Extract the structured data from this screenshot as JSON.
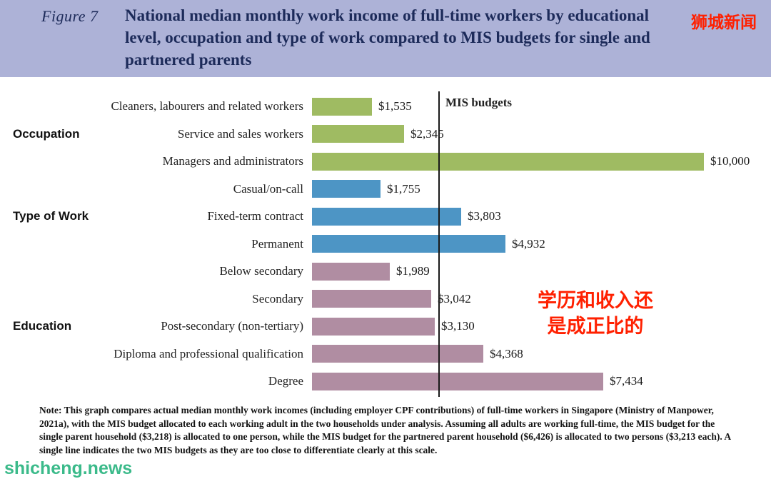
{
  "header": {
    "figure_label": "Figure 7",
    "title": "National median monthly work income of full-time workers by educational level, occupation and type of work compared to MIS budgets for single and partnered parents",
    "brand": "狮城新闻"
  },
  "chart_data": {
    "type": "bar",
    "orientation": "horizontal",
    "xlim": [
      0,
      10600
    ],
    "reference_line": {
      "label": "MIS budgets",
      "value": 3218
    },
    "groups": [
      {
        "name": "Occupation",
        "color": "#9fbb62",
        "items": [
          {
            "label": "Cleaners, labourers and related workers",
            "value": 1535,
            "value_label": "$1,535"
          },
          {
            "label": "Service and sales workers",
            "value": 2345,
            "value_label": "$2,345"
          },
          {
            "label": "Managers and administrators",
            "value": 10000,
            "value_label": "$10,000"
          }
        ]
      },
      {
        "name": "Type of Work",
        "color": "#4d95c5",
        "items": [
          {
            "label": "Casual/on-call",
            "value": 1755,
            "value_label": "$1,755"
          },
          {
            "label": "Fixed-term contract",
            "value": 3803,
            "value_label": "$3,803"
          },
          {
            "label": "Permanent",
            "value": 4932,
            "value_label": "$4,932"
          }
        ]
      },
      {
        "name": "Education",
        "color": "#b08da2",
        "items": [
          {
            "label": "Below secondary",
            "value": 1989,
            "value_label": "$1,989"
          },
          {
            "label": "Secondary",
            "value": 3042,
            "value_label": "$3,042"
          },
          {
            "label": "Post-secondary (non-tertiary)",
            "value": 3130,
            "value_label": "$3,130"
          },
          {
            "label": "Diploma and professional qualification",
            "value": 4368,
            "value_label": "$4,368"
          },
          {
            "label": "Degree",
            "value": 7434,
            "value_label": "$7,434"
          }
        ]
      }
    ]
  },
  "annotation": {
    "line1": "学历和收入还",
    "line2": "是成正比的",
    "color": "#ff2000"
  },
  "note": "Note: This graph compares actual median monthly work incomes (including employer CPF contributions) of full-time workers in Singapore (Ministry of Manpower, 2021a), with the MIS budget allocated to each working adult in the two households under analysis. Assuming all adults are working full-time, the MIS budget for the single parent household ($3,218) is allocated to one person, while the MIS budget for the partnered parent household ($6,426) is allocated to two persons ($3,213 each). A single line indicates the two MIS budgets as they are too close to differentiate clearly at this scale.",
  "watermark": "shicheng.news"
}
